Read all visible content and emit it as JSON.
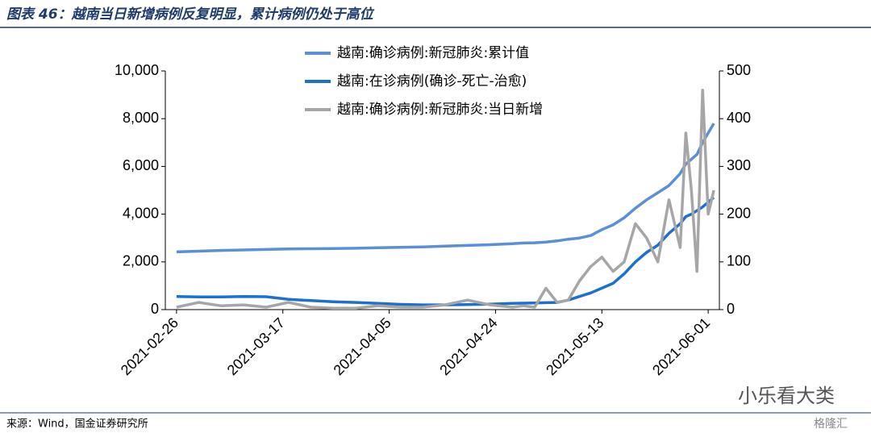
{
  "chart_data": {
    "type": "line",
    "title": "图表 46：越南当日新增病例反复明显，累计病例仍处于高位",
    "source": "来源：Wind，国金证券研究所",
    "watermark": "小乐看大类",
    "logo": "格隆汇",
    "x": [
      "2021-02-26",
      "2021-03-02",
      "2021-03-06",
      "2021-03-10",
      "2021-03-14",
      "2021-03-18",
      "2021-03-22",
      "2021-03-26",
      "2021-03-30",
      "2021-04-03",
      "2021-04-07",
      "2021-04-11",
      "2021-04-15",
      "2021-04-19",
      "2021-04-23",
      "2021-04-27",
      "2021-04-29",
      "2021-05-01",
      "2021-05-03",
      "2021-05-05",
      "2021-05-07",
      "2021-05-09",
      "2021-05-11",
      "2021-05-13",
      "2021-05-15",
      "2021-05-17",
      "2021-05-19",
      "2021-05-21",
      "2021-05-23",
      "2021-05-25",
      "2021-05-27",
      "2021-05-28",
      "2021-05-29",
      "2021-05-30",
      "2021-05-31",
      "2021-06-01",
      "2021-06-02"
    ],
    "xlim": [
      "2021-02-24",
      "2021-06-03"
    ],
    "xticks": [
      "2021-02-26",
      "2021-03-17",
      "2021-04-05",
      "2021-04-24",
      "2021-05-13",
      "2021-06-01"
    ],
    "ylim": [
      0,
      10000
    ],
    "yticks": [
      0,
      {
        "value": 2000,
        "label": "2,000"
      },
      {
        "value": 4000,
        "label": "4,000"
      },
      {
        "value": 6000,
        "label": "6,000"
      },
      {
        "value": 8000,
        "label": "8,000"
      },
      {
        "value": 10000,
        "label": "10,000"
      }
    ],
    "y2lim": [
      0,
      500
    ],
    "y2ticks": [
      0,
      100,
      200,
      300,
      400,
      500
    ],
    "series": [
      {
        "name": "越南:确诊病例:新冠肺炎:累计值",
        "color": "#5b8fd6",
        "width": 3.5,
        "values": [
          2420,
          2450,
          2480,
          2500,
          2520,
          2540,
          2550,
          2560,
          2570,
          2590,
          2610,
          2630,
          2660,
          2690,
          2720,
          2760,
          2790,
          2800,
          2830,
          2880,
          2950,
          3000,
          3100,
          3350,
          3550,
          3850,
          4250,
          4600,
          4900,
          5200,
          5700,
          6100,
          6300,
          6500,
          7000,
          7400,
          7800
        ]
      },
      {
        "name": "越南:在诊病例(确诊-死亡-治愈)",
        "color": "#1f6fd0",
        "width": 3.5,
        "values": [
          550,
          530,
          530,
          550,
          540,
          430,
          380,
          330,
          300,
          260,
          220,
          200,
          200,
          210,
          230,
          260,
          270,
          280,
          290,
          300,
          400,
          550,
          700,
          900,
          1100,
          1500,
          2000,
          2400,
          2700,
          3200,
          3600,
          3900,
          4000,
          4150,
          4300,
          4500,
          4700
        ]
      },
      {
        "name": "越南:确诊病例:新冠肺炎:当日新增",
        "color": "#a6a6a6",
        "width": 3.5,
        "axis": "y2",
        "values": [
          5,
          15,
          8,
          10,
          5,
          15,
          5,
          3,
          3,
          8,
          5,
          5,
          10,
          20,
          10,
          5,
          8,
          5,
          45,
          15,
          20,
          60,
          90,
          110,
          80,
          100,
          180,
          150,
          100,
          230,
          130,
          370,
          250,
          80,
          460,
          200,
          250
        ]
      }
    ]
  }
}
